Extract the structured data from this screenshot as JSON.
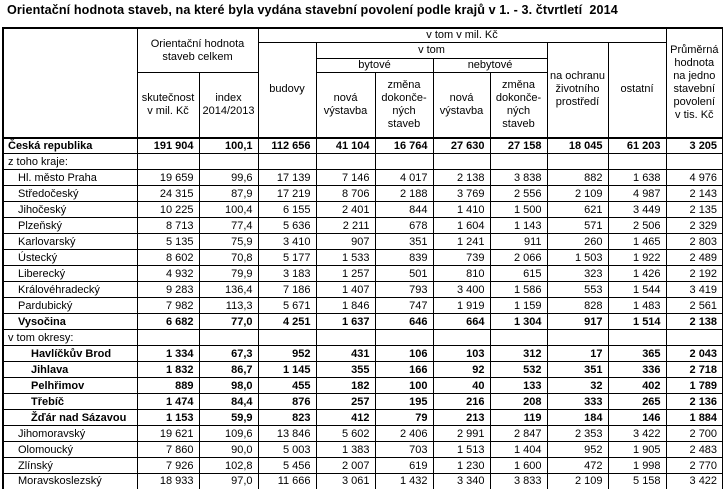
{
  "title": "Orientační hodnota staveb, na které byla vydána stavební povolení podle krajů v 1. - 3. čtvrtletí  2014",
  "table": {
    "header": {
      "group_total": "Orientační hodnota\nstaveb celkem",
      "col_actual": "skutečnost\nv mil. Kč",
      "col_index": "index\n2014/2013",
      "group_vtom_mil": "v tom v mil. Kč",
      "col_buildings": "budovy",
      "group_vtom": "v tom",
      "group_residential": "bytové",
      "group_nonresidential": "nebytové",
      "col_new_res": "nová\nvýstavba",
      "col_change_res": "změna\ndokonče-\nných\nstaveb",
      "col_new_nonres": "nová\nvýstavba",
      "col_change_nonres": "změna\ndokonče-\nných\nstaveb",
      "col_environment": "na ochranu\nživotního\nprostředí",
      "col_other": "ostatní",
      "col_average": "Průměrná\nhodnota\nna jedno\nstavební\npovolení\nv tis. Kč"
    },
    "rows": [
      {
        "label": "Česká republika",
        "bold": true,
        "indent": 0,
        "values": [
          "191 904",
          "100,1",
          "112 656",
          "41 104",
          "16 764",
          "27 630",
          "27 158",
          "18 045",
          "61 203",
          "3 205"
        ]
      },
      {
        "label": "z toho kraje:",
        "bold": false,
        "indent": 0,
        "values": [
          "",
          "",
          "",
          "",
          "",
          "",
          "",
          "",
          "",
          ""
        ]
      },
      {
        "label": "Hl. město Praha",
        "bold": false,
        "indent": 1,
        "values": [
          "19 659",
          "99,6",
          "17 139",
          "7 146",
          "4 017",
          "2 138",
          "3 838",
          "882",
          "1 638",
          "4 976"
        ]
      },
      {
        "label": "Středočeský",
        "bold": false,
        "indent": 1,
        "values": [
          "24 315",
          "87,9",
          "17 219",
          "8 706",
          "2 188",
          "3 769",
          "2 556",
          "2 109",
          "4 987",
          "2 143"
        ]
      },
      {
        "label": "Jihočeský",
        "bold": false,
        "indent": 1,
        "values": [
          "10 225",
          "100,4",
          "6 155",
          "2 401",
          "844",
          "1 410",
          "1 500",
          "621",
          "3 449",
          "2 135"
        ]
      },
      {
        "label": "Plzeňský",
        "bold": false,
        "indent": 1,
        "values": [
          "8 713",
          "77,4",
          "5 636",
          "2 211",
          "678",
          "1 604",
          "1 143",
          "571",
          "2 506",
          "2 329"
        ]
      },
      {
        "label": "Karlovarský",
        "bold": false,
        "indent": 1,
        "values": [
          "5 135",
          "75,9",
          "3 410",
          "907",
          "351",
          "1 241",
          "911",
          "260",
          "1 465",
          "2 803"
        ]
      },
      {
        "label": "Ústecký",
        "bold": false,
        "indent": 1,
        "values": [
          "8 602",
          "70,8",
          "5 177",
          "1 533",
          "839",
          "739",
          "2 066",
          "1 503",
          "1 922",
          "2 489"
        ]
      },
      {
        "label": "Liberecký",
        "bold": false,
        "indent": 1,
        "values": [
          "4 932",
          "79,9",
          "3 183",
          "1 257",
          "501",
          "810",
          "615",
          "323",
          "1 426",
          "2 192"
        ]
      },
      {
        "label": "Královéhradecký",
        "bold": false,
        "indent": 1,
        "values": [
          "9 283",
          "136,4",
          "7 186",
          "1 407",
          "793",
          "3 400",
          "1 586",
          "553",
          "1 544",
          "3 419"
        ]
      },
      {
        "label": "Pardubický",
        "bold": false,
        "indent": 1,
        "values": [
          "7 982",
          "113,3",
          "5 671",
          "1 846",
          "747",
          "1 919",
          "1 159",
          "828",
          "1 483",
          "2 561"
        ]
      },
      {
        "label": "Vysočina",
        "bold": true,
        "indent": 1,
        "values": [
          "6 682",
          "77,0",
          "4 251",
          "1 637",
          "646",
          "664",
          "1 304",
          "917",
          "1 514",
          "2 138"
        ]
      },
      {
        "label": "v tom okresy:",
        "bold": false,
        "indent": 0,
        "values": [
          "",
          "",
          "",
          "",
          "",
          "",
          "",
          "",
          "",
          ""
        ]
      },
      {
        "label": "Havlíčkův Brod",
        "bold": true,
        "indent": 2,
        "values": [
          "1 334",
          "67,3",
          "952",
          "431",
          "106",
          "103",
          "312",
          "17",
          "365",
          "2 043"
        ]
      },
      {
        "label": "Jihlava",
        "bold": true,
        "indent": 2,
        "values": [
          "1 832",
          "86,7",
          "1 145",
          "355",
          "166",
          "92",
          "532",
          "351",
          "336",
          "2 718"
        ]
      },
      {
        "label": "Pelhřimov",
        "bold": true,
        "indent": 2,
        "values": [
          "889",
          "98,0",
          "455",
          "182",
          "100",
          "40",
          "133",
          "32",
          "402",
          "1 789"
        ]
      },
      {
        "label": "Třebíč",
        "bold": true,
        "indent": 2,
        "values": [
          "1 474",
          "84,4",
          "876",
          "257",
          "195",
          "216",
          "208",
          "333",
          "265",
          "2 136"
        ]
      },
      {
        "label": "Žďár nad Sázavou",
        "bold": true,
        "indent": 2,
        "values": [
          "1 153",
          "59,9",
          "823",
          "412",
          "79",
          "213",
          "119",
          "184",
          "146",
          "1 884"
        ]
      },
      {
        "label": "Jihomoravský",
        "bold": false,
        "indent": 1,
        "values": [
          "19 621",
          "109,6",
          "13 846",
          "5 602",
          "2 406",
          "2 991",
          "2 847",
          "2 353",
          "3 422",
          "2 700"
        ]
      },
      {
        "label": "Olomoucký",
        "bold": false,
        "indent": 1,
        "values": [
          "7 860",
          "90,0",
          "5 003",
          "1 383",
          "703",
          "1 513",
          "1 404",
          "952",
          "1 905",
          "2 483"
        ]
      },
      {
        "label": "Zlínský",
        "bold": false,
        "indent": 1,
        "values": [
          "7 926",
          "102,8",
          "5 456",
          "2 007",
          "619",
          "1 230",
          "1 600",
          "472",
          "1 998",
          "2 770"
        ]
      },
      {
        "label": "Moravskoslezský",
        "bold": false,
        "indent": 1,
        "values": [
          "18 933",
          "97,0",
          "11 666",
          "3 061",
          "1 432",
          "3 340",
          "3 833",
          "2 109",
          "5 158",
          "3 422"
        ]
      }
    ]
  }
}
